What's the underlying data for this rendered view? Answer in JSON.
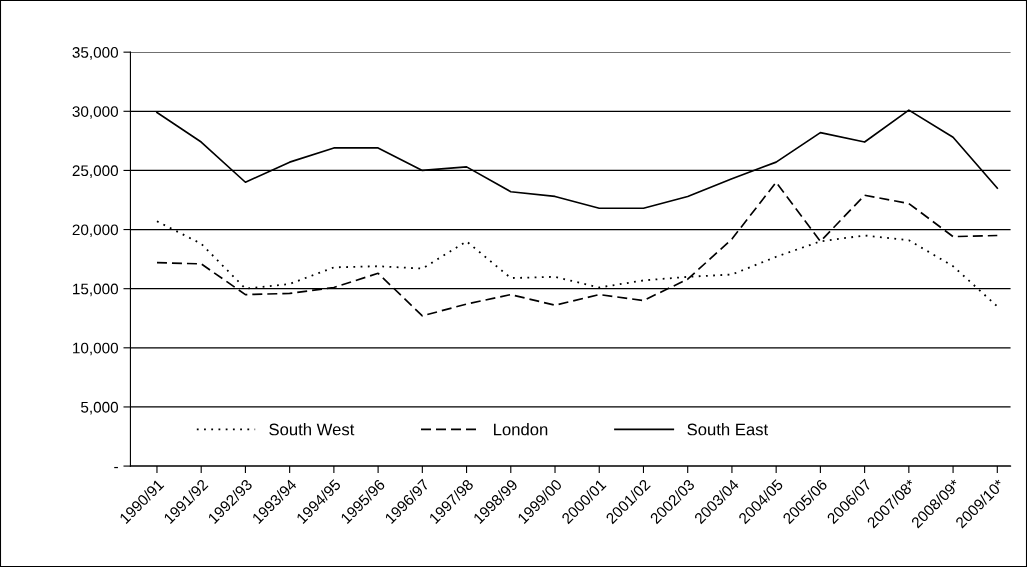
{
  "chart_data": {
    "type": "line",
    "categories": [
      "1990/91",
      "1991/92",
      "1992/93",
      "1993/94",
      "1994/95",
      "1995/96",
      "1996/97",
      "1997/98",
      "1998/99",
      "1999/00",
      "2000/01",
      "2001/02",
      "2002/03",
      "2003/04",
      "2004/05",
      "2005/06",
      "2006/07",
      "2007/08*",
      "2008/09*",
      "2009/10*"
    ],
    "series": [
      {
        "name": "South West",
        "color": "#000000",
        "line_style": "dotted",
        "values": [
          20700,
          18800,
          15000,
          15400,
          16800,
          16900,
          16700,
          19000,
          15900,
          16000,
          15100,
          15700,
          16000,
          16200,
          17700,
          19000,
          19500,
          19100,
          16900,
          13500
        ]
      },
      {
        "name": "London",
        "color": "#000000",
        "line_style": "dashed",
        "values": [
          17200,
          17100,
          14500,
          14600,
          15100,
          16300,
          12700,
          13700,
          14500,
          13600,
          14500,
          14000,
          15800,
          19200,
          24000,
          19000,
          22900,
          22200,
          19400,
          19500
        ]
      },
      {
        "name": "South East",
        "color": "#000000",
        "line_style": "solid",
        "values": [
          29900,
          27400,
          24000,
          25700,
          26900,
          26900,
          25000,
          25300,
          23200,
          22800,
          21800,
          21800,
          22800,
          24300,
          25700,
          28200,
          27400,
          30100,
          27800,
          23500
        ]
      }
    ],
    "ylim": [
      0,
      35000
    ],
    "yticks": [
      {
        "value": 0,
        "label": "-"
      },
      {
        "value": 5000,
        "label": "5,000"
      },
      {
        "value": 10000,
        "label": "10,000"
      },
      {
        "value": 15000,
        "label": "15,000"
      },
      {
        "value": 20000,
        "label": "20,000"
      },
      {
        "value": 25000,
        "label": "25,000"
      },
      {
        "value": 30000,
        "label": "30,000"
      },
      {
        "value": 35000,
        "label": "35,000"
      }
    ],
    "grid": "y",
    "legend": "bottom",
    "marker": "none"
  }
}
